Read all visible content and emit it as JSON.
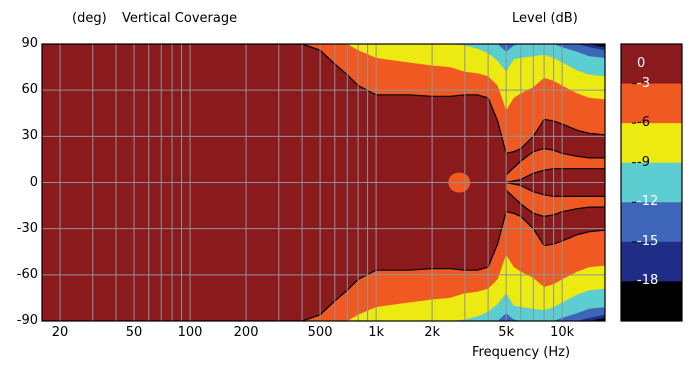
{
  "chart_data": {
    "type": "heatmap",
    "title": "Vertical Coverage",
    "ylabel": "(deg)",
    "xlabel": "Frequency  (Hz)",
    "colorbar_label": "Level  (dB)",
    "x_scale": "log",
    "xlim": [
      16,
      17000
    ],
    "ylim": [
      -90,
      90
    ],
    "x_tick_labels": [
      "20",
      "50",
      "100",
      "200",
      "500",
      "1k",
      "2k",
      "5k",
      "10k"
    ],
    "x_tick_values": [
      20,
      50,
      100,
      200,
      500,
      1000,
      2000,
      5000,
      10000
    ],
    "y_tick_labels": [
      "90",
      "60",
      "30",
      "0",
      "-30",
      "-60",
      "-90"
    ],
    "y_tick_values": [
      90,
      60,
      30,
      0,
      -30,
      -60,
      -90
    ],
    "colorbar": {
      "labels": [
        "0",
        "-3",
        "-6",
        "-9",
        "-12",
        "-15",
        "-18"
      ],
      "colors": [
        "#8b1a1c",
        "#f05a22",
        "#ecea10",
        "#5ccdd1",
        "#3d65b8",
        "#1f2d86",
        "#000000"
      ]
    },
    "contour_bounds": {
      "note": "angle (deg, +/- symmetric) at which level falls below each threshold",
      "frequency_hz": [
        16,
        250,
        300,
        400,
        500,
        600,
        700,
        800,
        1000,
        1500,
        2000,
        2500,
        3000,
        3500,
        4000,
        4500,
        5000,
        5500,
        6000,
        7000,
        8000,
        9000,
        10000,
        12000,
        14000,
        17000
      ],
      "minus3": [
        90,
        90,
        90,
        90,
        86,
        77,
        70,
        63,
        57,
        57,
        56,
        56,
        57,
        57,
        55,
        40,
        19,
        20,
        22,
        30,
        41,
        40,
        38,
        34,
        32,
        31
      ],
      "minus6": [
        90,
        90,
        90,
        90,
        90,
        90,
        90,
        86,
        81,
        78,
        76,
        75,
        72,
        71,
        69,
        63,
        47,
        55,
        58,
        62,
        68,
        66,
        63,
        58,
        55,
        54
      ],
      "minus9": [
        90,
        90,
        90,
        90,
        90,
        90,
        90,
        90,
        90,
        90,
        90,
        90,
        89,
        87,
        84,
        79,
        72,
        80,
        81,
        82,
        83,
        81,
        78,
        73,
        70,
        69
      ],
      "minus12": [
        90,
        90,
        90,
        90,
        90,
        90,
        90,
        90,
        90,
        90,
        90,
        90,
        90,
        90,
        90,
        90,
        85,
        89,
        90,
        90,
        90,
        90,
        88,
        85,
        82,
        81
      ],
      "minus15": [
        90,
        90,
        90,
        90,
        90,
        90,
        90,
        90,
        90,
        90,
        90,
        90,
        90,
        90,
        90,
        90,
        90,
        90,
        90,
        90,
        90,
        90,
        90,
        90,
        88,
        86
      ],
      "minus18": [
        90,
        90,
        90,
        90,
        90,
        90,
        90,
        90,
        90,
        90,
        90,
        90,
        90,
        90,
        90,
        90,
        90,
        90,
        90,
        90,
        90,
        90,
        90,
        90,
        90,
        88
      ]
    },
    "inner_spot": {
      "frequency_hz": 2800,
      "angle_deg": 0,
      "level_label": "-3"
    },
    "inner_lobe": {
      "frequency_hz": [
        5000,
        6000,
        7000,
        8000,
        9000,
        10000,
        12000,
        14000,
        17000
      ],
      "upper_deg": [
        5,
        14,
        20,
        22,
        21,
        19,
        17,
        16,
        16
      ],
      "lower_deg": [
        0,
        2,
        6,
        8,
        9,
        9,
        9,
        9,
        9
      ],
      "level_label": "-3"
    },
    "grid": true
  }
}
